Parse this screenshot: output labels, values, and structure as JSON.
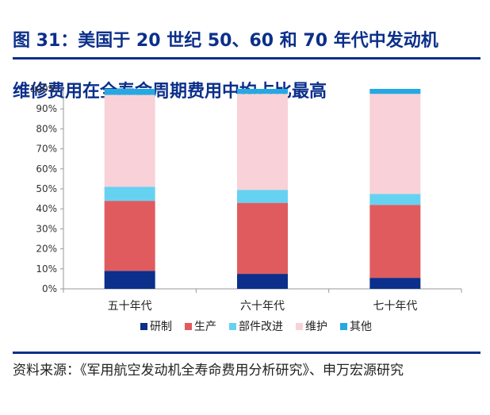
{
  "figure": {
    "title_line1": "图 31：美国于 20 世纪 50、60 和 70 年代中发动机",
    "title_line2": "维修费用在全寿命周期费用中均占比最高",
    "source": "资料来源：《军用航空发动机全寿命费用分析研究》、申万宏源研究"
  },
  "chart_data": {
    "type": "bar",
    "stacked": true,
    "categories": [
      "五十年代",
      "六十年代",
      "七十年代"
    ],
    "series": [
      {
        "name": "研制",
        "color": "#0b2f8a",
        "values": [
          9,
          7.5,
          5.5
        ]
      },
      {
        "name": "生产",
        "color": "#e05b5e",
        "values": [
          35,
          35.5,
          36.5
        ]
      },
      {
        "name": "部件改进",
        "color": "#66d2f2",
        "values": [
          7,
          6.5,
          5.5
        ]
      },
      {
        "name": "维护",
        "color": "#f8d2d8",
        "values": [
          46,
          48,
          50
        ]
      },
      {
        "name": "其他",
        "color": "#26a8e2",
        "values": [
          3,
          2.5,
          2.5
        ]
      }
    ],
    "ylim": [
      0,
      100
    ],
    "yticks": [
      "0%",
      "10%",
      "20%",
      "30%",
      "40%",
      "50%",
      "60%",
      "70%",
      "80%",
      "90%",
      "100%"
    ],
    "legend_position": "bottom"
  }
}
